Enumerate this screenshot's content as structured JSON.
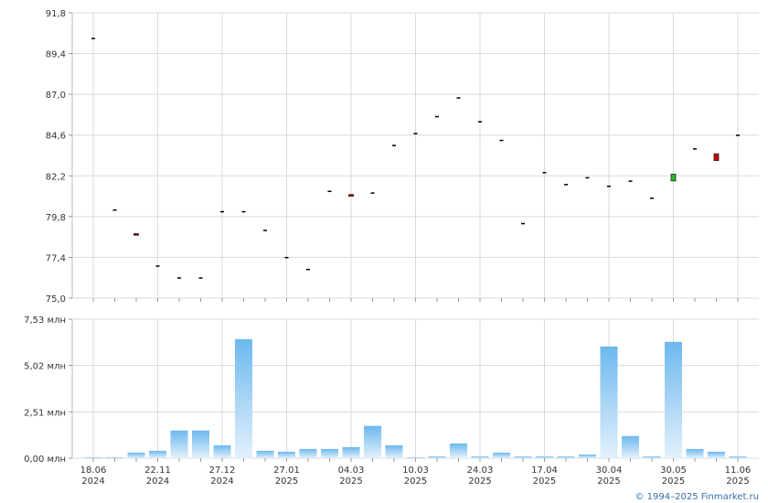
{
  "chart_data": [
    {
      "type": "candlestick",
      "name": "price",
      "ylim": [
        75.0,
        91.8
      ],
      "yticks": [
        "91,8",
        "89,4",
        "87,0",
        "84,6",
        "82,2",
        "79,8",
        "77,4",
        "75,0"
      ],
      "ytick_values": [
        91.8,
        89.4,
        87.0,
        84.6,
        82.2,
        79.8,
        77.4,
        75.0
      ],
      "grid": true,
      "colors": {
        "up": "#2eb82e",
        "down": "#cc0000",
        "flat": "#000000"
      },
      "candles": [
        {
          "i": 0,
          "open": 90.3,
          "close": 90.3
        },
        {
          "i": 1,
          "open": 80.2,
          "close": 80.2
        },
        {
          "i": 2,
          "open": 78.8,
          "close": 78.7
        },
        {
          "i": 3,
          "open": 76.9,
          "close": 76.9
        },
        {
          "i": 4,
          "open": 76.2,
          "close": 76.2
        },
        {
          "i": 5,
          "open": 76.2,
          "close": 76.2
        },
        {
          "i": 6,
          "open": 80.1,
          "close": 80.1
        },
        {
          "i": 7,
          "open": 80.1,
          "close": 80.1
        },
        {
          "i": 8,
          "open": 79.0,
          "close": 79.0
        },
        {
          "i": 9,
          "open": 77.4,
          "close": 77.4
        },
        {
          "i": 10,
          "open": 76.7,
          "close": 76.7
        },
        {
          "i": 11,
          "open": 81.3,
          "close": 81.3
        },
        {
          "i": 12,
          "open": 81.1,
          "close": 81.0
        },
        {
          "i": 13,
          "open": 81.2,
          "close": 81.2
        },
        {
          "i": 14,
          "open": 84.0,
          "close": 84.0
        },
        {
          "i": 15,
          "open": 84.7,
          "close": 84.7
        },
        {
          "i": 16,
          "open": 85.7,
          "close": 85.7
        },
        {
          "i": 17,
          "open": 86.8,
          "close": 86.8
        },
        {
          "i": 18,
          "open": 85.4,
          "close": 85.4
        },
        {
          "i": 19,
          "open": 84.3,
          "close": 84.3
        },
        {
          "i": 20,
          "open": 79.4,
          "close": 79.4
        },
        {
          "i": 21,
          "open": 82.4,
          "close": 82.4
        },
        {
          "i": 22,
          "open": 81.7,
          "close": 81.7
        },
        {
          "i": 23,
          "open": 82.1,
          "close": 82.1
        },
        {
          "i": 24,
          "open": 81.6,
          "close": 81.6
        },
        {
          "i": 25,
          "open": 81.9,
          "close": 81.9
        },
        {
          "i": 26,
          "open": 80.9,
          "close": 80.9
        },
        {
          "i": 27,
          "open": 81.9,
          "close": 82.3
        },
        {
          "i": 28,
          "open": 83.8,
          "close": 83.8
        },
        {
          "i": 29,
          "open": 83.5,
          "close": 83.1
        },
        {
          "i": 30,
          "open": 84.6,
          "close": 84.6
        }
      ]
    },
    {
      "type": "bar",
      "name": "volume",
      "ylim": [
        0,
        7.53
      ],
      "yticks": [
        "7,53 млн",
        "5,02 млн",
        "2,51 млн",
        "0,00 млн"
      ],
      "ytick_values": [
        7.53,
        5.02,
        2.51,
        0.0
      ],
      "unit": "млн",
      "grid": true,
      "values": [
        0.05,
        0.05,
        0.3,
        0.4,
        1.5,
        1.5,
        0.7,
        6.45,
        0.4,
        0.35,
        0.5,
        0.5,
        0.6,
        1.75,
        0.7,
        0.05,
        0.1,
        0.8,
        0.1,
        0.3,
        0.1,
        0.1,
        0.1,
        0.2,
        6.05,
        1.2,
        0.1,
        6.3,
        0.5,
        0.35,
        0.1
      ]
    }
  ],
  "x_axis": {
    "tick_indices": [
      0,
      3,
      6,
      9,
      12,
      15,
      18,
      21,
      24,
      27,
      30
    ],
    "dates": [
      "18.06",
      "22.11",
      "27.12",
      "27.01",
      "04.03",
      "10.03",
      "24.03",
      "17.04",
      "30.04",
      "30.05",
      "11.06"
    ],
    "years": [
      "2024",
      "2024",
      "2024",
      "2025",
      "2025",
      "2025",
      "2025",
      "2025",
      "2025",
      "2025",
      "2025"
    ]
  },
  "copyright": "© 1994–2025 Finmarket.ru"
}
